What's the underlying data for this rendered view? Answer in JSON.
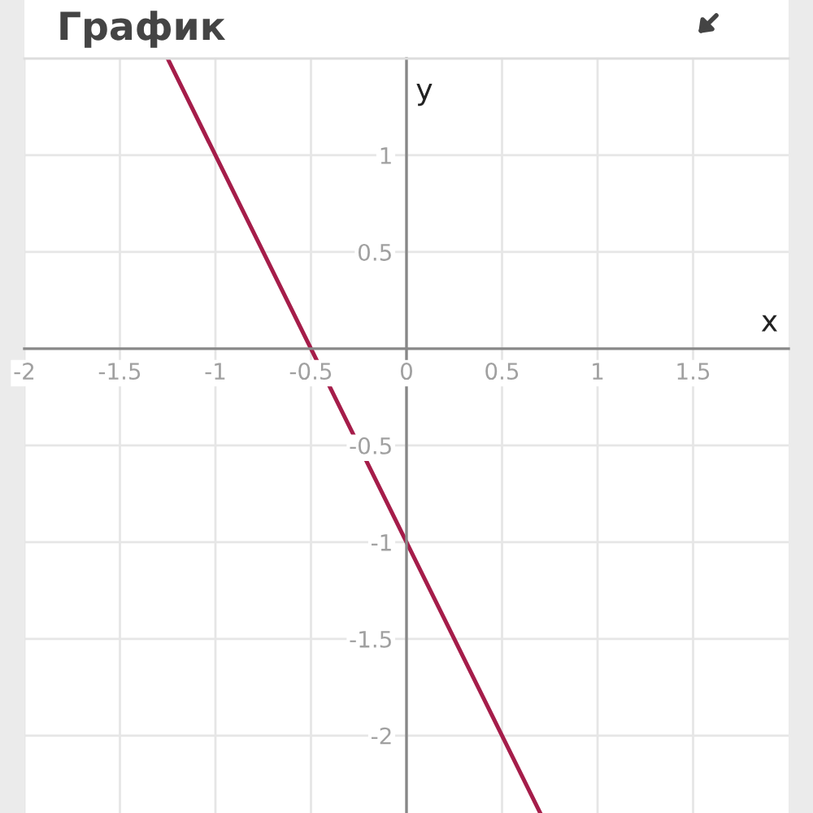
{
  "chart_data": {
    "type": "line",
    "title": "График",
    "xlabel": "x",
    "ylabel": "y",
    "x": [
      -1.25,
      -0.5,
      0,
      0.7
    ],
    "series": [
      {
        "color": "#a51d4a",
        "values": [
          1.5,
          0,
          -1,
          -2.4
        ]
      }
    ],
    "xlim": [
      -2,
      2
    ],
    "ylim": [
      -2.4,
      1.5
    ],
    "xticks": [
      -2,
      -1.5,
      -1,
      -0.5,
      0,
      0.5,
      1,
      1.5
    ],
    "yticks": [
      -2,
      -1.5,
      -1,
      -0.5,
      0.5,
      1
    ],
    "grid": true,
    "marker": "none",
    "line_style": "solid"
  }
}
